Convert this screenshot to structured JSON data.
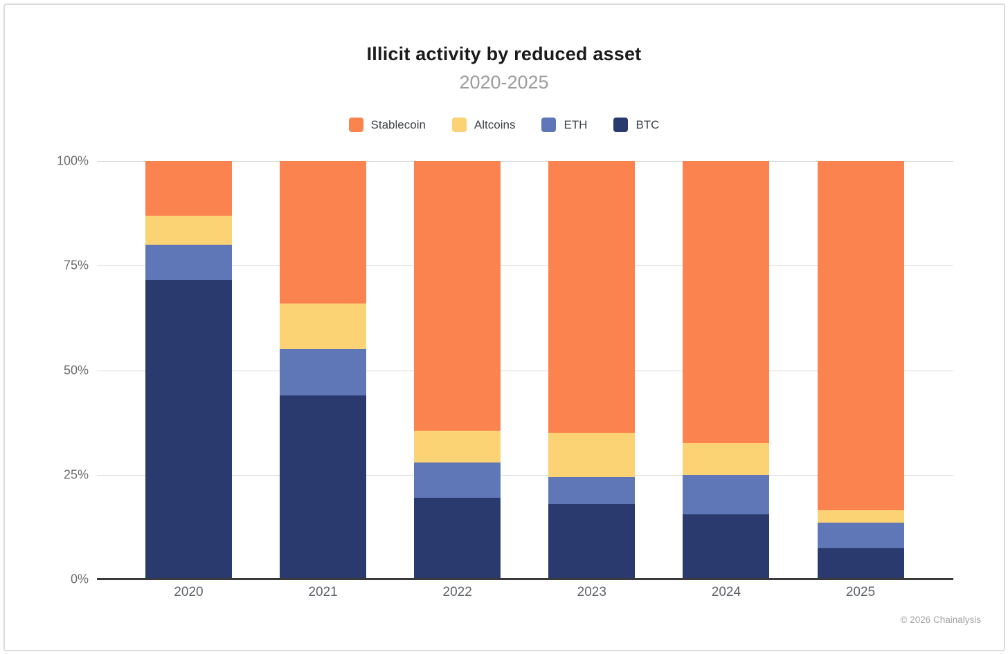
{
  "card": {
    "title": "Illicit activity by reduced asset",
    "subtitle": "2020-2025",
    "footer": "© 2026 Chainalysis"
  },
  "legend": [
    {
      "label": "Stablecoin",
      "color": "#FA8350"
    },
    {
      "label": "Altcoins",
      "color": "#FBD274"
    },
    {
      "label": "ETH",
      "color": "#5F76B7"
    },
    {
      "label": "BTC",
      "color": "#2B3A6E"
    }
  ],
  "chart_data": {
    "type": "bar",
    "stacked": true,
    "unit": "percent",
    "title": "Illicit activity by reduced asset",
    "subtitle": "2020-2025",
    "categories": [
      "2020",
      "2021",
      "2022",
      "2023",
      "2024",
      "2025"
    ],
    "series": [
      {
        "name": "BTC",
        "color": "#2B3A6E",
        "values": [
          71.5,
          44.0,
          19.5,
          18.0,
          15.5,
          7.5
        ]
      },
      {
        "name": "ETH",
        "color": "#5F76B7",
        "values": [
          8.5,
          11.0,
          8.5,
          6.5,
          9.5,
          6.0
        ]
      },
      {
        "name": "Altcoins",
        "color": "#FBD274",
        "values": [
          7.0,
          11.0,
          7.5,
          10.5,
          7.5,
          3.0
        ]
      },
      {
        "name": "Stablecoin",
        "color": "#FA8350",
        "values": [
          13.0,
          34.0,
          64.5,
          65.0,
          67.5,
          83.5
        ]
      }
    ],
    "stack_order_bottom_to_top": [
      "BTC",
      "ETH",
      "Altcoins",
      "Stablecoin"
    ],
    "legend_order": [
      "Stablecoin",
      "Altcoins",
      "ETH",
      "BTC"
    ],
    "legend_position": "top",
    "ylim": [
      0,
      100
    ],
    "yticks": [
      {
        "value": 0,
        "label": "0%"
      },
      {
        "value": 25,
        "label": "25%"
      },
      {
        "value": 50,
        "label": "50%"
      },
      {
        "value": 75,
        "label": "75%"
      },
      {
        "value": 100,
        "label": "100%"
      }
    ],
    "grid": true
  },
  "colors": {
    "grid": "#D9D9D9",
    "axis_line": "#3A3A3A",
    "tick_text": "#6E6E6E",
    "title_text": "#1B1B1B",
    "subtitle_text": "#9C9C9C",
    "footer_text": "#A3A3A3",
    "card_border": "#DCDCDC",
    "background": "#FFFFFF"
  }
}
